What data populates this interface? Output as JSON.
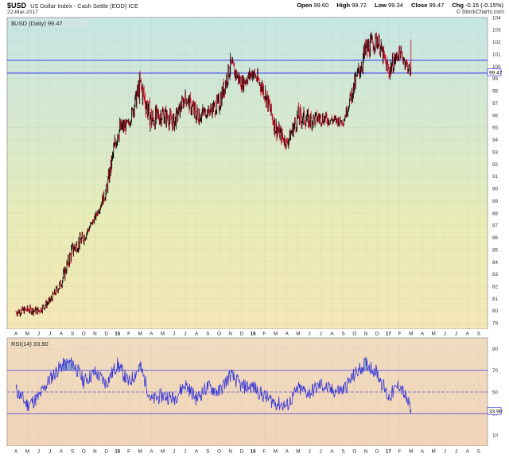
{
  "header": {
    "symbol": "$USD",
    "description": "US Dollar Index - Cash Settle (EOD) ICE",
    "date": "22-Mar-2017",
    "open_label": "Open",
    "open_value": "99.60",
    "high_label": "High",
    "high_value": "99.72",
    "low_label": "Low",
    "low_value": "99.34",
    "close_label": "Close",
    "close_value": "99.47",
    "chg_label": "Chg",
    "chg_value": "-0.15 (-0.15%)",
    "brand": "© StockCharts.com"
  },
  "colors": {
    "up_bar": "#000000",
    "down_bar": "#d0021b",
    "hline": "#1c1cf0",
    "rsi_line": "#3535d8",
    "rsi_fill": "#6f8fc8",
    "price_panel_gradient": [
      "#c6e6e4",
      "#d6e8cf",
      "#e8ecb6",
      "#f5e7b6"
    ],
    "rsi_panel_gradient": [
      "#f0dcc0",
      "#f2d4b8"
    ]
  },
  "chart_data": [
    {
      "type": "ohlc",
      "title": "$USD (Daily) 99.47",
      "last_value_label": "99.47",
      "ylim": [
        78.5,
        104
      ],
      "y_ticks": [
        79,
        80,
        81,
        82,
        83,
        84,
        85,
        86,
        87,
        88,
        89,
        90,
        91,
        92,
        93,
        94,
        95,
        96,
        97,
        98,
        99,
        100,
        101,
        102,
        103,
        104
      ],
      "x_months": [
        "A",
        "M",
        "J",
        "J",
        "A",
        "S",
        "O",
        "N",
        "D",
        "15",
        "F",
        "M",
        "A",
        "M",
        "J",
        "J",
        "A",
        "S",
        "O",
        "N",
        "D",
        "16",
        "F",
        "M",
        "A",
        "M",
        "J",
        "J",
        "A",
        "S",
        "O",
        "N",
        "D",
        "17",
        "F",
        "M",
        "A",
        "M",
        "J",
        "J",
        "A",
        "S"
      ],
      "x_start": "2014-04",
      "x_end": "2017-09",
      "x_emphasized": [
        "15",
        "16",
        "17"
      ],
      "horizontal_lines": [
        100.5,
        99.45
      ],
      "grid": true,
      "series": {
        "dates": [
          "2014-04",
          "2014-05",
          "2014-06",
          "2014-07",
          "2014-08",
          "2014-09",
          "2014-10",
          "2014-11",
          "2014-12",
          "2015-01",
          "2015-02",
          "2015-03",
          "2015-04",
          "2015-05",
          "2015-06",
          "2015-07",
          "2015-08",
          "2015-09",
          "2015-10",
          "2015-11",
          "2015-12",
          "2016-01",
          "2016-02",
          "2016-03",
          "2016-04",
          "2016-05",
          "2016-06",
          "2016-07",
          "2016-08",
          "2016-09",
          "2016-10",
          "2016-11",
          "2016-12",
          "2017-01",
          "2017-02",
          "2017-03"
        ],
        "close": [
          79.9,
          80.1,
          80.0,
          80.8,
          82.3,
          85.0,
          86.0,
          87.6,
          89.8,
          94.7,
          95.3,
          98.5,
          95.6,
          96.1,
          95.4,
          97.5,
          96.0,
          96.3,
          96.9,
          100.1,
          98.6,
          99.5,
          98.0,
          95.0,
          93.7,
          95.9,
          95.6,
          95.8,
          95.6,
          95.5,
          98.5,
          101.3,
          102.2,
          99.6,
          101.2,
          99.47
        ],
        "high": [
          80.5,
          80.4,
          80.8,
          81.5,
          82.6,
          86.0,
          87.0,
          88.3,
          90.2,
          95.3,
          95.5,
          100.4,
          99.4,
          97.1,
          97.3,
          98.1,
          98.3,
          96.9,
          99.4,
          100.5,
          100.0,
          100.5,
          99.8,
          98.4,
          95.2,
          96.2,
          96.8,
          97.5,
          96.4,
          96.2,
          99.1,
          102.1,
          103.8,
          103.6,
          101.8,
          102.2
        ],
        "low": [
          79.3,
          79.6,
          79.3,
          79.9,
          80.4,
          82.5,
          84.5,
          87.0,
          87.3,
          90.3,
          93.5,
          95.1,
          94.4,
          93.2,
          93.5,
          95.4,
          93.4,
          94.9,
          95.2,
          96.6,
          97.0,
          97.5,
          95.7,
          94.5,
          92.6,
          92.0,
          93.3,
          94.6,
          94.0,
          94.5,
          95.2,
          97.0,
          100.5,
          99.3,
          99.2,
          99.3
        ]
      }
    },
    {
      "type": "line",
      "title": "RSI(14) 33.90",
      "last_value_label": "33.90",
      "ylim": [
        0,
        100
      ],
      "y_ticks": [
        10,
        30,
        50,
        70,
        90
      ],
      "horizontal_lines": [
        70,
        30
      ],
      "dashed_lines": [
        50
      ],
      "fill_above": 70,
      "fill_below": 30,
      "series": {
        "dates": [
          "2014-04",
          "2014-05",
          "2014-06",
          "2014-07",
          "2014-08",
          "2014-09",
          "2014-10",
          "2014-11",
          "2014-12",
          "2015-01",
          "2015-02",
          "2015-03",
          "2015-04",
          "2015-05",
          "2015-06",
          "2015-07",
          "2015-08",
          "2015-09",
          "2015-10",
          "2015-11",
          "2015-12",
          "2016-01",
          "2016-02",
          "2016-03",
          "2016-04",
          "2016-05",
          "2016-06",
          "2016-07",
          "2016-08",
          "2016-09",
          "2016-10",
          "2016-11",
          "2016-12",
          "2017-01",
          "2017-02",
          "2017-03"
        ],
        "values": [
          52,
          38,
          45,
          62,
          74,
          78,
          60,
          68,
          58,
          76,
          58,
          74,
          42,
          47,
          44,
          57,
          44,
          55,
          50,
          66,
          55,
          55,
          46,
          40,
          37,
          53,
          49,
          57,
          51,
          52,
          66,
          77,
          68,
          45,
          57,
          33.9
        ]
      }
    }
  ]
}
